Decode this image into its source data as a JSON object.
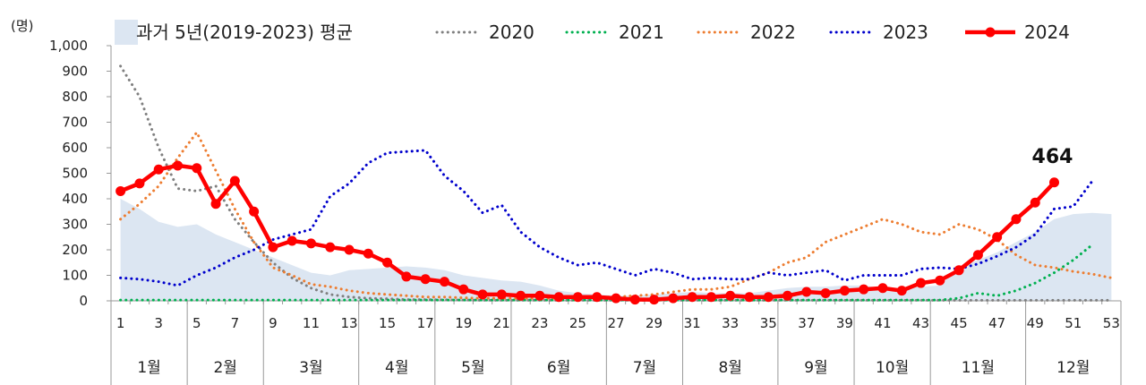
{
  "chart_data": {
    "type": "line",
    "unit_label": "(명)",
    "ylim": [
      0,
      1000
    ],
    "yticks": [
      0,
      100,
      200,
      300,
      400,
      500,
      600,
      700,
      800,
      900,
      1000
    ],
    "ytick_labels": [
      "0",
      "100",
      "200",
      "300",
      "400",
      "500",
      "600",
      "700",
      "800",
      "900",
      "1,000"
    ],
    "x": [
      1,
      2,
      3,
      4,
      5,
      6,
      7,
      8,
      9,
      10,
      11,
      12,
      13,
      14,
      15,
      16,
      17,
      18,
      19,
      20,
      21,
      22,
      23,
      24,
      25,
      26,
      27,
      28,
      29,
      30,
      31,
      32,
      33,
      34,
      35,
      36,
      37,
      38,
      39,
      40,
      41,
      42,
      43,
      44,
      45,
      46,
      47,
      48,
      49,
      50,
      51,
      52,
      53
    ],
    "xtick_labels": [
      "1",
      "3",
      "5",
      "7",
      "9",
      "11",
      "13",
      "15",
      "17",
      "19",
      "21",
      "23",
      "25",
      "27",
      "29",
      "31",
      "33",
      "35",
      "37",
      "39",
      "41",
      "43",
      "45",
      "47",
      "49",
      "51",
      "53"
    ],
    "months": [
      {
        "label": "1월",
        "from": 1,
        "to": 4
      },
      {
        "label": "2월",
        "from": 5,
        "to": 8
      },
      {
        "label": "3월",
        "from": 9,
        "to": 13
      },
      {
        "label": "4월",
        "from": 14,
        "to": 17
      },
      {
        "label": "5월",
        "from": 18,
        "to": 21
      },
      {
        "label": "6월",
        "from": 22,
        "to": 26
      },
      {
        "label": "7월",
        "from": 27,
        "to": 30
      },
      {
        "label": "8월",
        "from": 31,
        "to": 35
      },
      {
        "label": "9월",
        "from": 36,
        "to": 39
      },
      {
        "label": "10월",
        "from": 40,
        "to": 43
      },
      {
        "label": "11월",
        "from": 44,
        "to": 48
      },
      {
        "label": "12월",
        "from": 49,
        "to": 53
      }
    ],
    "series": [
      {
        "name": "과거 5년(2019-2023) 평균",
        "style": "area",
        "color": "#dce6f2",
        "values": [
          400,
          360,
          310,
          290,
          300,
          260,
          230,
          200,
          170,
          140,
          110,
          100,
          120,
          125,
          130,
          135,
          130,
          120,
          100,
          90,
          80,
          75,
          60,
          40,
          30,
          25,
          20,
          20,
          25,
          30,
          35,
          30,
          30,
          30,
          40,
          50,
          55,
          55,
          60,
          60,
          50,
          50,
          55,
          60,
          130,
          160,
          190,
          230,
          270,
          320,
          340,
          345,
          340
        ]
      },
      {
        "name": "2020",
        "style": "dotted",
        "color": "#7f7f7f",
        "values": [
          920,
          800,
          600,
          440,
          430,
          450,
          320,
          230,
          150,
          90,
          50,
          25,
          15,
          10,
          8,
          5,
          5,
          4,
          3,
          2,
          2,
          2,
          2,
          2,
          2,
          2,
          2,
          2,
          2,
          2,
          2,
          2,
          2,
          2,
          2,
          2,
          2,
          2,
          2,
          2,
          2,
          2,
          2,
          2,
          2,
          2,
          2,
          2,
          2,
          2,
          2,
          2,
          2
        ]
      },
      {
        "name": "2021",
        "style": "dotted",
        "color": "#00b050",
        "values": [
          3,
          3,
          3,
          3,
          3,
          3,
          3,
          3,
          3,
          3,
          3,
          3,
          3,
          3,
          3,
          3,
          3,
          3,
          3,
          3,
          3,
          3,
          3,
          3,
          3,
          3,
          3,
          3,
          3,
          3,
          3,
          3,
          3,
          3,
          3,
          3,
          3,
          3,
          3,
          3,
          3,
          3,
          3,
          3,
          10,
          30,
          20,
          40,
          70,
          110,
          160,
          220,
          null
        ]
      },
      {
        "name": "2022",
        "style": "dotted",
        "color": "#ed7d31",
        "values": [
          320,
          380,
          450,
          560,
          660,
          510,
          360,
          230,
          130,
          100,
          65,
          55,
          40,
          30,
          25,
          20,
          15,
          15,
          12,
          10,
          10,
          10,
          10,
          10,
          15,
          15,
          15,
          20,
          25,
          35,
          45,
          45,
          55,
          85,
          110,
          150,
          170,
          230,
          260,
          290,
          320,
          300,
          270,
          260,
          300,
          280,
          240,
          180,
          140,
          130,
          115,
          105,
          90
        ]
      },
      {
        "name": "2023",
        "style": "dotted",
        "color": "#0000cc",
        "values": [
          90,
          85,
          75,
          60,
          100,
          130,
          170,
          200,
          240,
          260,
          280,
          410,
          460,
          540,
          580,
          585,
          590,
          490,
          430,
          345,
          375,
          270,
          210,
          170,
          140,
          150,
          125,
          100,
          125,
          110,
          85,
          90,
          85,
          85,
          110,
          100,
          110,
          120,
          80,
          100,
          100,
          100,
          125,
          130,
          125,
          145,
          175,
          210,
          260,
          360,
          370,
          470,
          null
        ]
      },
      {
        "name": "2024",
        "style": "solid-marker",
        "color": "#ff0000",
        "values": [
          430,
          460,
          515,
          530,
          520,
          380,
          470,
          350,
          210,
          235,
          225,
          210,
          200,
          185,
          150,
          95,
          85,
          75,
          45,
          25,
          25,
          20,
          20,
          15,
          15,
          15,
          10,
          5,
          5,
          10,
          15,
          15,
          20,
          15,
          15,
          20,
          35,
          30,
          40,
          45,
          50,
          40,
          70,
          80,
          120,
          180,
          250,
          320,
          385,
          464,
          null,
          null,
          null
        ]
      }
    ],
    "annotation": {
      "label": "464",
      "x": 50,
      "y": 464
    },
    "legend_position": "top"
  }
}
